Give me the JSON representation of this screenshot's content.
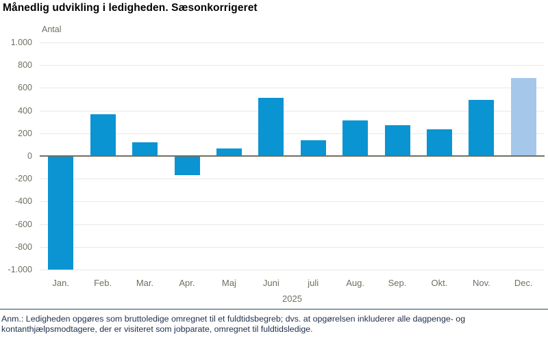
{
  "page": {
    "title": "Månedlig udvikling i ledigheden. Sæsonkorrigeret",
    "footnote_line1": "Anm.: Ledigheden opgøres som bruttoledige omregnet til et fuldtidsbegreb; dvs. at opgørelsen inkluderer alle dagpenge- og",
    "footnote_line2": "kontanthjælpsmodtagere, der er visiteret som jobparate, omregnet til fuldtidsledige."
  },
  "chart_data": {
    "type": "bar",
    "title": "Månedlig udvikling i ledigheden. Sæsonkorrigeret",
    "unit_label": "Antal",
    "categories": [
      "Jan.",
      "Feb.",
      "Mar.",
      "Apr.",
      "Maj",
      "Juni",
      "juli",
      "Aug.",
      "Sep.",
      "Okt.",
      "Nov.",
      "Dec."
    ],
    "values": [
      -1000,
      370,
      120,
      -170,
      65,
      510,
      140,
      315,
      270,
      235,
      495,
      685
    ],
    "x_axis_year": "2025",
    "ylabel": "Antal",
    "ylim": [
      -1000,
      1000
    ],
    "ytick_step": 200,
    "ytick_labels": [
      "1.000",
      "800",
      "600",
      "400",
      "200",
      "0",
      "-200",
      "-400",
      "-600",
      "-800",
      "-1.000"
    ],
    "grid": "horizontal",
    "legend": "none",
    "highlight_last_bar": true,
    "colors": {
      "bar": "#0a94d2",
      "bar_highlight": "#a5c8ea",
      "grid": "#e7e7e1",
      "zero_axis": "#716f5f",
      "axis_text": "#6f6e60",
      "title_text": "#000000",
      "footnote_text": "#21304a",
      "divider": "#8c9ca4"
    }
  }
}
